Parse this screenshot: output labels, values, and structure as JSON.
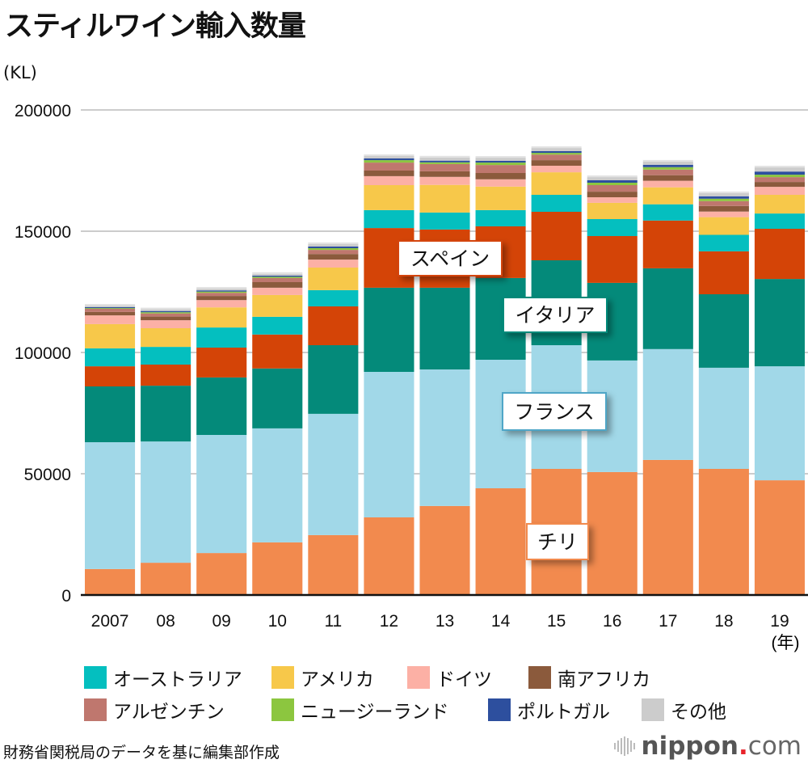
{
  "title": "スティルワイン輸入数量",
  "source": "財務省関税局のデータを基に編集部作成",
  "logo": {
    "brand": "nippon",
    "dot": ".",
    "suffix": "com"
  },
  "chart_data": {
    "type": "bar",
    "stacked": true,
    "title": "スティルワイン輸入数量",
    "ylabel": "(KL)",
    "xlabel": "(年)",
    "ylim": [
      0,
      200000
    ],
    "yticks": [
      0,
      50000,
      100000,
      150000,
      200000
    ],
    "ytick_labels": [
      "0",
      "50000",
      "100000",
      "150000",
      "200000"
    ],
    "grid": true,
    "legend_position": "bottom",
    "categories": [
      "2007",
      "08",
      "09",
      "10",
      "11",
      "12",
      "13",
      "14",
      "15",
      "16",
      "17",
      "18",
      "19"
    ],
    "series": [
      {
        "name": "チリ",
        "color": "#f28a4e",
        "values": [
          10700,
          13300,
          17300,
          21700,
          24700,
          32000,
          36700,
          44000,
          52000,
          50700,
          55700,
          52000,
          47300
        ]
      },
      {
        "name": "フランス",
        "color": "#a1d8e8",
        "values": [
          52300,
          50000,
          48700,
          47000,
          50000,
          60000,
          56300,
          53000,
          51000,
          46000,
          45700,
          41700,
          47000
        ]
      },
      {
        "name": "イタリア",
        "color": "#048a7a",
        "values": [
          23000,
          23000,
          23700,
          24700,
          28300,
          34700,
          33700,
          33700,
          35000,
          32000,
          33300,
          30300,
          36000
        ]
      },
      {
        "name": "スペイン",
        "color": "#d44407",
        "values": [
          8300,
          8700,
          12300,
          14000,
          16000,
          24600,
          24000,
          21300,
          20000,
          19300,
          19700,
          17700,
          20700
        ]
      },
      {
        "name": "オーストラリア",
        "color": "#04bfbf",
        "values": [
          7400,
          7300,
          8300,
          7300,
          6700,
          7400,
          7000,
          6700,
          7000,
          7000,
          6700,
          6800,
          6300
        ]
      },
      {
        "name": "アメリカ",
        "color": "#f7c84a",
        "values": [
          10000,
          7700,
          8300,
          9000,
          9300,
          10300,
          11400,
          9700,
          9300,
          6700,
          7000,
          7300,
          7700
        ]
      },
      {
        "name": "ドイツ",
        "color": "#fcb0a5",
        "values": [
          3600,
          3300,
          3000,
          3000,
          3300,
          3700,
          3300,
          3000,
          2700,
          2300,
          2700,
          2300,
          3300
        ]
      },
      {
        "name": "南アフリカ",
        "color": "#8b5a3c",
        "values": [
          1400,
          1500,
          1700,
          2300,
          2300,
          2300,
          2300,
          2600,
          2300,
          2300,
          2300,
          2300,
          2000
        ]
      },
      {
        "name": "アルゼンチン",
        "color": "#bf776e",
        "values": [
          1300,
          1300,
          1300,
          1700,
          1700,
          3300,
          3000,
          3300,
          2300,
          2700,
          2300,
          2000,
          2000
        ]
      },
      {
        "name": "ニュージーランド",
        "color": "#8cc63f",
        "values": [
          300,
          500,
          500,
          500,
          700,
          1000,
          700,
          1000,
          700,
          1000,
          1000,
          1000,
          1000
        ]
      },
      {
        "name": "ポルトガル",
        "color": "#2d4f9e",
        "values": [
          400,
          500,
          500,
          500,
          700,
          700,
          700,
          700,
          700,
          1000,
          1000,
          1000,
          1300
        ]
      },
      {
        "name": "その他",
        "color": "#cccccc",
        "values": [
          600,
          700,
          700,
          700,
          1000,
          1000,
          1300,
          1300,
          1300,
          1300,
          1300,
          1300,
          1700
        ]
      }
    ],
    "callouts": [
      {
        "label": "スペイン",
        "series": "スペイン"
      },
      {
        "label": "イタリア",
        "series": "イタリア"
      },
      {
        "label": "フランス",
        "series": "フランス"
      },
      {
        "label": "チリ",
        "series": "チリ"
      }
    ],
    "legend": [
      [
        "オーストラリア",
        "アメリカ",
        "ドイツ",
        "南アフリカ"
      ],
      [
        "アルゼンチン",
        "ニュージーランド",
        "ポルトガル",
        "その他"
      ]
    ]
  }
}
